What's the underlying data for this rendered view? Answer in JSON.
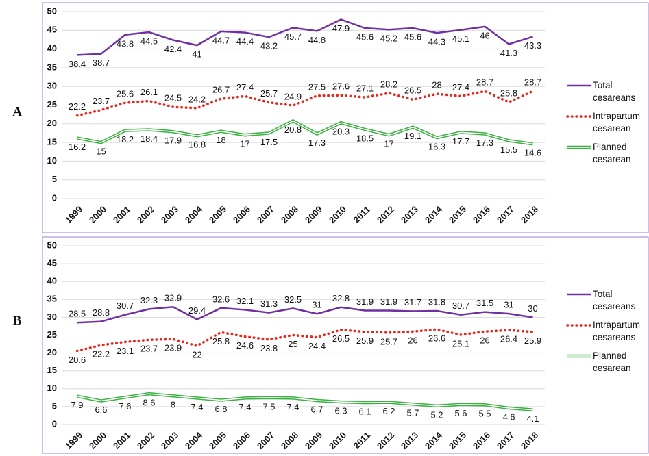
{
  "chart_data": [
    {
      "type": "line",
      "label": "A",
      "categories": [
        "1999",
        "2000",
        "2001",
        "2002",
        "2003",
        "2004",
        "2005",
        "2006",
        "2007",
        "2008",
        "2009",
        "2010",
        "2011",
        "2012",
        "2013",
        "2014",
        "2015",
        "2016",
        "2017",
        "2018"
      ],
      "ylim": [
        0,
        50
      ],
      "yticks": [
        0,
        5,
        10,
        15,
        20,
        25,
        30,
        35,
        40,
        45,
        50
      ],
      "grid": true,
      "series": [
        {
          "name": "Total cesareans",
          "color": "#7030a0",
          "values": [
            38.4,
            38.7,
            43.8,
            44.5,
            42.4,
            41,
            44.7,
            44.4,
            43.2,
            45.7,
            44.8,
            47.9,
            45.6,
            45.2,
            45.6,
            44.3,
            45.1,
            46,
            41.3,
            43.3
          ]
        },
        {
          "name": "Intrapartum cesarean",
          "color": "#e8261c",
          "values": [
            22.2,
            23.7,
            25.6,
            26.1,
            24.5,
            24.2,
            26.7,
            27.4,
            25.7,
            24.9,
            27.5,
            27.6,
            27.1,
            28.2,
            26.5,
            28,
            27.4,
            28.7,
            25.8,
            28.7
          ]
        },
        {
          "name": "Planned cesarean",
          "color": "#3cb043",
          "values": [
            16.2,
            15,
            18.2,
            18.4,
            17.9,
            16.8,
            18,
            17,
            17.5,
            20.8,
            17.3,
            20.3,
            18.5,
            17,
            19.1,
            16.3,
            17.7,
            17.3,
            15.5,
            14.6
          ]
        }
      ]
    },
    {
      "type": "line",
      "label": "B",
      "categories": [
        "1999",
        "2000",
        "2001",
        "2002",
        "2003",
        "2004",
        "2005",
        "2006",
        "2007",
        "2008",
        "2009",
        "2010",
        "2011",
        "2012",
        "2013",
        "2014",
        "2015",
        "2016",
        "2017",
        "2018"
      ],
      "ylim": [
        0,
        50
      ],
      "yticks": [
        0,
        5,
        10,
        15,
        20,
        25,
        30,
        35,
        40,
        45,
        50
      ],
      "grid": true,
      "series": [
        {
          "name": "Total cesareans",
          "color": "#7030a0",
          "values": [
            28.5,
            28.8,
            30.7,
            32.3,
            32.9,
            29.4,
            32.6,
            32.1,
            31.3,
            32.5,
            31,
            32.8,
            31.9,
            31.9,
            31.7,
            31.8,
            30.7,
            31.5,
            31,
            30
          ]
        },
        {
          "name": "Intrapartum cesareans",
          "color": "#e8261c",
          "values": [
            20.6,
            22.2,
            23.1,
            23.7,
            23.9,
            22,
            25.8,
            24.6,
            23.8,
            25,
            24.4,
            26.5,
            25.9,
            25.7,
            26,
            26.6,
            25.1,
            26,
            26.4,
            25.9
          ]
        },
        {
          "name": "Planned cesarean",
          "color": "#3cb043",
          "values": [
            7.9,
            6.6,
            7.6,
            8.6,
            8,
            7.4,
            6.8,
            7.4,
            7.5,
            7.4,
            6.7,
            6.3,
            6.1,
            6.2,
            5.7,
            5.2,
            5.6,
            5.5,
            4.6,
            4.1
          ]
        }
      ]
    }
  ]
}
